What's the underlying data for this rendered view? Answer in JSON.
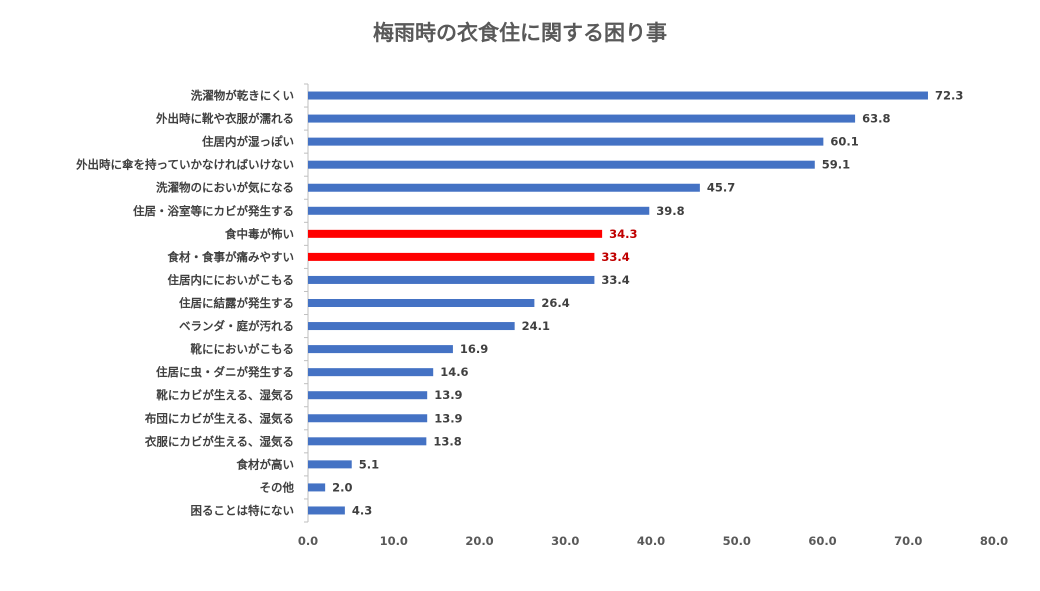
{
  "chart_data": {
    "type": "bar",
    "orientation": "horizontal",
    "title": "梅雨時の衣食住に関する困り事",
    "categories": [
      "洗濯物が乾きにくい",
      "外出時に靴や衣服が濡れる",
      "住居内が湿っぽい",
      "外出時に傘を持っていかなければいけない",
      "洗濯物のにおいが気になる",
      "住居・浴室等にカビが発生する",
      "食中毒が怖い",
      "食材・食事が痛みやすい",
      "住居内ににおいがこもる",
      "住居に結露が発生する",
      "ベランダ・庭が汚れる",
      "靴ににおいがこもる",
      "住居に虫・ダニが発生する",
      "靴にカビが生える、湿気る",
      "布団にカビが生える、湿気る",
      "衣服にカビが生える、湿気る",
      "食材が高い",
      "その他",
      "困ることは特にない"
    ],
    "values": [
      72.3,
      63.8,
      60.1,
      59.1,
      45.7,
      39.8,
      34.3,
      33.4,
      33.4,
      26.4,
      24.1,
      16.9,
      14.6,
      13.9,
      13.9,
      13.8,
      5.1,
      2.0,
      4.3
    ],
    "value_labels": [
      "72.3",
      "63.8",
      "60.1",
      "59.1",
      "45.7",
      "39.8",
      "34.3",
      "33.4",
      "33.4",
      "26.4",
      "24.1",
      "16.9",
      "14.6",
      "13.9",
      "13.9",
      "13.8",
      "5.1",
      "2.0",
      "4.3"
    ],
    "highlighted": [
      false,
      false,
      false,
      false,
      false,
      false,
      true,
      true,
      false,
      false,
      false,
      false,
      false,
      false,
      false,
      false,
      false,
      false,
      false
    ],
    "xlim": [
      0,
      80
    ],
    "x_ticks": [
      "0.0",
      "10.0",
      "20.0",
      "30.0",
      "40.0",
      "50.0",
      "60.0",
      "70.0",
      "80.0"
    ],
    "xlabel": "",
    "ylabel": "",
    "grid": false,
    "legend": "none",
    "colors": {
      "bar": "#4472C4",
      "highlight_bar": "#FF0000",
      "highlight_label": "#C00000",
      "label": "#404040",
      "title": "#595959",
      "axis": "#BFBFBF"
    }
  }
}
